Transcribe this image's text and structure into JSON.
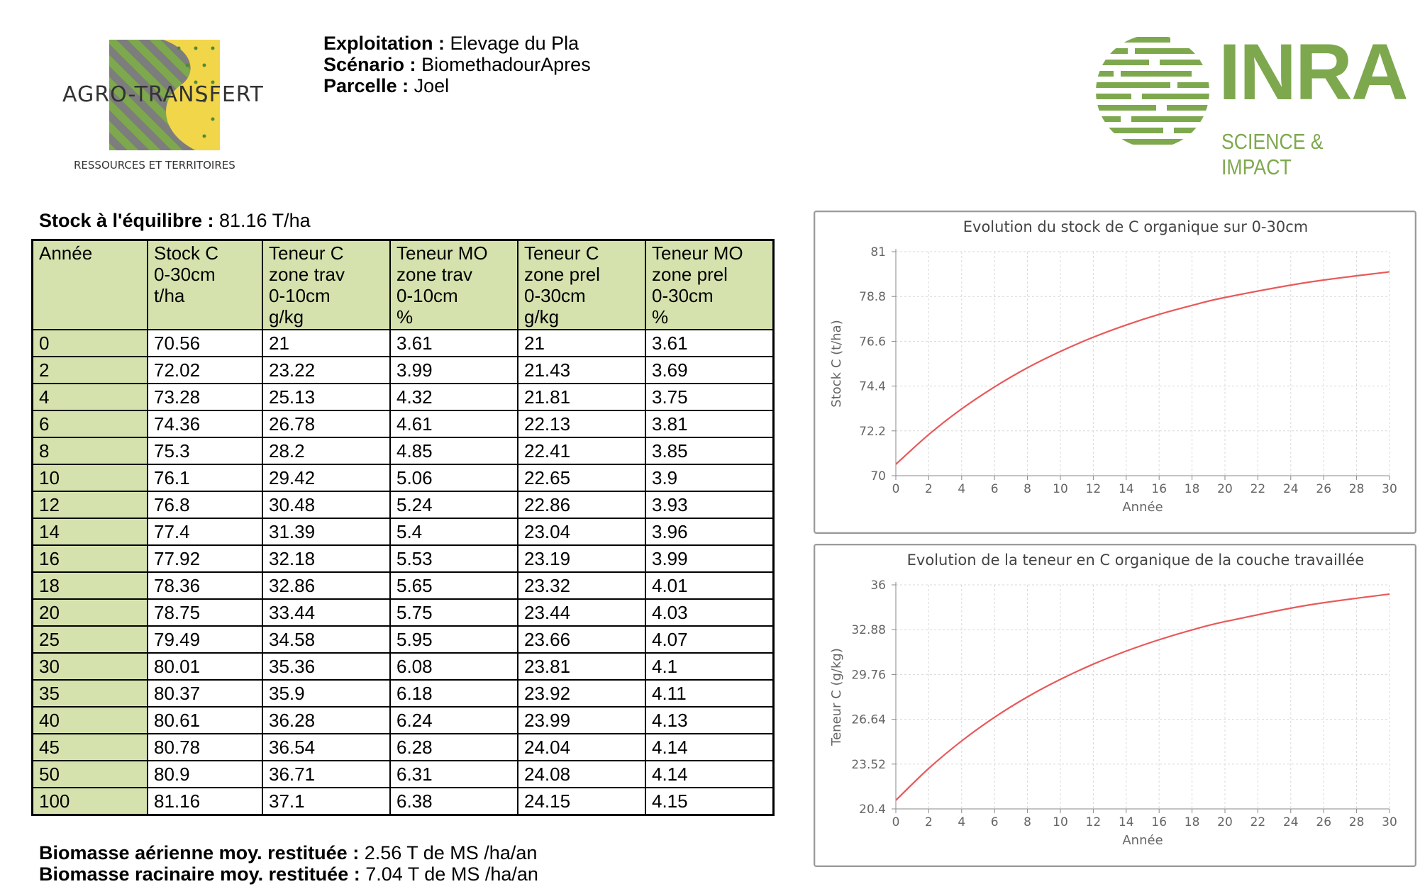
{
  "header": {
    "exploitation_label": "Exploitation :",
    "exploitation_value": "Elevage du Pla",
    "scenario_label": "Scénario :",
    "scenario_value": "BiomethadourApres",
    "parcelle_label": "Parcelle :",
    "parcelle_value": "Joel"
  },
  "logos": {
    "agro_name": "AGRO-TRANSFERT",
    "agro_sub": "RESSOURCES ET TERRITOIRES",
    "inra_name": "INRA",
    "inra_sub": "SCIENCE & IMPACT",
    "agro_colors": {
      "stripe_green": "#7ea84e",
      "stripe_grey": "#7d7d7d",
      "yellow": "#f1d64a"
    },
    "inra_color": "#7ea84e"
  },
  "stock_equilibre": {
    "label": "Stock à l'équilibre :",
    "value": "81.16 T/ha"
  },
  "table": {
    "headers": [
      "Année",
      "Stock C\n0-30cm\nt/ha",
      "Teneur C\nzone trav\n0-10cm\ng/kg",
      "Teneur MO\nzone trav\n0-10cm\n%",
      "Teneur C\nzone prel\n0-30cm\ng/kg",
      "Teneur MO\nzone prel\n0-30cm\n%"
    ],
    "rows": [
      [
        "0",
        "70.56",
        "21",
        "3.61",
        "21",
        "3.61"
      ],
      [
        "2",
        "72.02",
        "23.22",
        "3.99",
        "21.43",
        "3.69"
      ],
      [
        "4",
        "73.28",
        "25.13",
        "4.32",
        "21.81",
        "3.75"
      ],
      [
        "6",
        "74.36",
        "26.78",
        "4.61",
        "22.13",
        "3.81"
      ],
      [
        "8",
        "75.3",
        "28.2",
        "4.85",
        "22.41",
        "3.85"
      ],
      [
        "10",
        "76.1",
        "29.42",
        "5.06",
        "22.65",
        "3.9"
      ],
      [
        "12",
        "76.8",
        "30.48",
        "5.24",
        "22.86",
        "3.93"
      ],
      [
        "14",
        "77.4",
        "31.39",
        "5.4",
        "23.04",
        "3.96"
      ],
      [
        "16",
        "77.92",
        "32.18",
        "5.53",
        "23.19",
        "3.99"
      ],
      [
        "18",
        "78.36",
        "32.86",
        "5.65",
        "23.32",
        "4.01"
      ],
      [
        "20",
        "78.75",
        "33.44",
        "5.75",
        "23.44",
        "4.03"
      ],
      [
        "25",
        "79.49",
        "34.58",
        "5.95",
        "23.66",
        "4.07"
      ],
      [
        "30",
        "80.01",
        "35.36",
        "6.08",
        "23.81",
        "4.1"
      ],
      [
        "35",
        "80.37",
        "35.9",
        "6.18",
        "23.92",
        "4.11"
      ],
      [
        "40",
        "80.61",
        "36.28",
        "6.24",
        "23.99",
        "4.13"
      ],
      [
        "45",
        "80.78",
        "36.54",
        "6.28",
        "24.04",
        "4.14"
      ],
      [
        "50",
        "80.9",
        "36.71",
        "6.31",
        "24.08",
        "4.14"
      ],
      [
        "100",
        "81.16",
        "37.1",
        "6.38",
        "24.15",
        "4.15"
      ]
    ]
  },
  "biomasse": {
    "aerienne_label": "Biomasse aérienne moy. restituée :",
    "aerienne_value": "2.56 T de MS /ha/an",
    "racinaire_label": "Biomasse racinaire moy. restituée :",
    "racinaire_value": "7.04 T de MS /ha/an"
  },
  "chart_data": [
    {
      "type": "line",
      "title": "Evolution du stock de C organique sur 0-30cm",
      "xlabel": "Année",
      "ylabel": "Stock C (t/ha)",
      "xlim": [
        0,
        30
      ],
      "ylim": [
        70,
        81
      ],
      "xticks": [
        0,
        2,
        4,
        6,
        8,
        10,
        12,
        14,
        16,
        18,
        20,
        22,
        24,
        26,
        28,
        30
      ],
      "yticks": [
        "70",
        "72.2",
        "74.4",
        "76.6",
        "78.8",
        "81"
      ],
      "grid": true,
      "line_color": "#e8595a",
      "x": [
        0,
        2,
        4,
        6,
        8,
        10,
        12,
        14,
        16,
        18,
        20,
        25,
        30
      ],
      "y": [
        70.56,
        72.02,
        73.28,
        74.36,
        75.3,
        76.1,
        76.8,
        77.4,
        77.92,
        78.36,
        78.75,
        79.49,
        80.01
      ]
    },
    {
      "type": "line",
      "title": "Evolution de la teneur en C organique de la couche travaillée",
      "xlabel": "Année",
      "ylabel": "Teneur C (g/kg)",
      "xlim": [
        0,
        30
      ],
      "ylim": [
        20.4,
        36
      ],
      "xticks": [
        0,
        2,
        4,
        6,
        8,
        10,
        12,
        14,
        16,
        18,
        20,
        22,
        24,
        26,
        28,
        30
      ],
      "yticks": [
        "20.4",
        "23.52",
        "26.64",
        "29.76",
        "32.88",
        "36"
      ],
      "grid": true,
      "line_color": "#e8595a",
      "x": [
        0,
        2,
        4,
        6,
        8,
        10,
        12,
        14,
        16,
        18,
        20,
        25,
        30
      ],
      "y": [
        21,
        23.22,
        25.13,
        26.78,
        28.2,
        29.42,
        30.48,
        31.39,
        32.18,
        32.86,
        33.44,
        34.58,
        35.36
      ]
    }
  ]
}
